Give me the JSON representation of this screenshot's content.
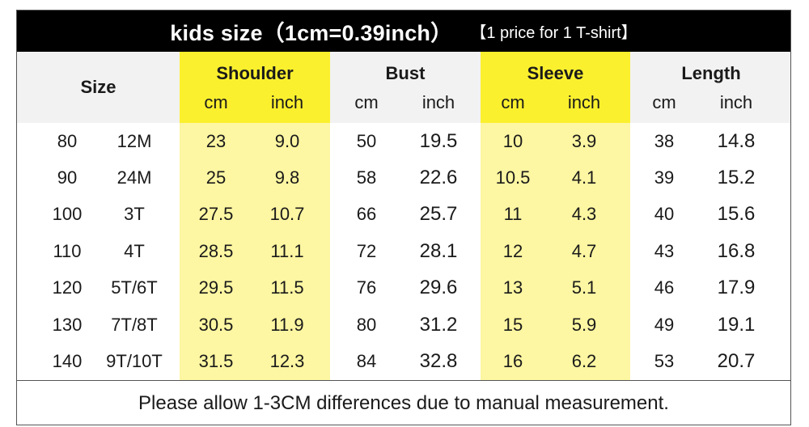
{
  "title": {
    "main": "kids size（1cm=0.39inch）",
    "note": "【1 price for 1 T-shirt】"
  },
  "header": {
    "size": "Size",
    "groups": [
      "Shoulder",
      "Bust",
      "Sleeve",
      "Length"
    ],
    "units": [
      "cm",
      "inch",
      "cm",
      "inch",
      "cm",
      "inch",
      "cm",
      "inch"
    ]
  },
  "colors": {
    "title_bg": "#000000",
    "header_bg": "#f2f2f2",
    "highlight_header": "#fbf02e",
    "highlight_body": "#fdf6a2"
  },
  "rows": [
    [
      "80",
      "12M",
      "23",
      "9.0",
      "50",
      "19.5",
      "10",
      "3.9",
      "38",
      "14.8"
    ],
    [
      "90",
      "24M",
      "25",
      "9.8",
      "58",
      "22.6",
      "10.5",
      "4.1",
      "39",
      "15.2"
    ],
    [
      "100",
      "3T",
      "27.5",
      "10.7",
      "66",
      "25.7",
      "11",
      "4.3",
      "40",
      "15.6"
    ],
    [
      "110",
      "4T",
      "28.5",
      "11.1",
      "72",
      "28.1",
      "12",
      "4.7",
      "43",
      "16.8"
    ],
    [
      "120",
      "5T/6T",
      "29.5",
      "11.5",
      "76",
      "29.6",
      "13",
      "5.1",
      "46",
      "17.9"
    ],
    [
      "130",
      "7T/8T",
      "30.5",
      "11.9",
      "80",
      "31.2",
      "15",
      "5.9",
      "49",
      "19.1"
    ],
    [
      "140",
      "9T/10T",
      "31.5",
      "12.3",
      "84",
      "32.8",
      "16",
      "6.2",
      "53",
      "20.7"
    ]
  ],
  "footer": "Please allow 1-3CM differences due to manual measurement."
}
